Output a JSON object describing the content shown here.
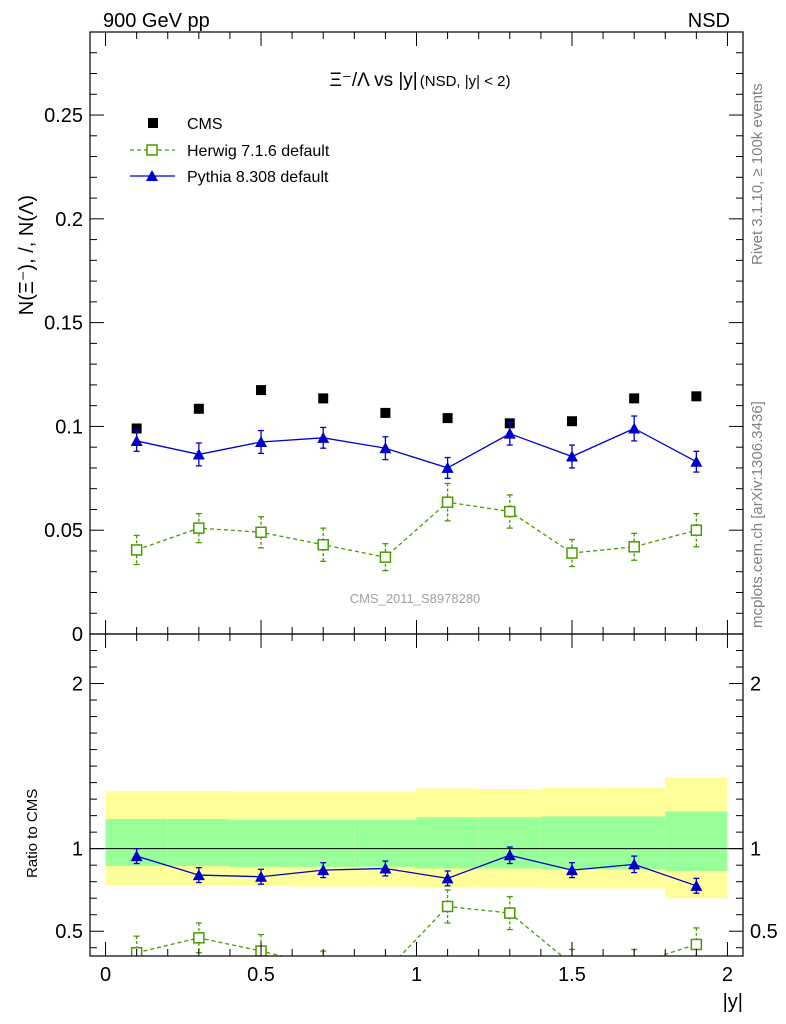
{
  "header": {
    "left": "900 GeV pp",
    "right": "NSD"
  },
  "side_text": {
    "upper": "Rivet 3.1.10, ≥ 100k events",
    "lower": "mcplots.cern.ch [arXiv:1306.3436]"
  },
  "chart_data": [
    {
      "type": "scatter",
      "panel": "main",
      "title": "Ξ⁻/Λ vs |y| (NSD, |y| < 2)",
      "title_main": "Ξ⁻/Λ vs |y|",
      "title_sub": "(NSD, |y| < 2)",
      "xlabel": "|y|",
      "ylabel": "N(Ξ⁻), /, N(Λ)",
      "xlim": [
        -0.05,
        2.05
      ],
      "ylim": [
        0,
        0.29
      ],
      "yticks": [
        0,
        0.05,
        0.1,
        0.15,
        0.2,
        0.25
      ],
      "ytick_labels": [
        "0",
        "0.05",
        "0.1",
        "0.15",
        "0.2",
        "0.25"
      ],
      "watermark": "CMS_2011_S8978280",
      "legend_position": "top-left",
      "series": [
        {
          "name": "CMS",
          "style": "data",
          "color": "#000000",
          "marker": "square-filled",
          "x": [
            0.1,
            0.3,
            0.5,
            0.7,
            0.9,
            1.1,
            1.3,
            1.5,
            1.7,
            1.9
          ],
          "y": [
            0.099,
            0.1085,
            0.1175,
            0.1135,
            0.1065,
            0.104,
            0.1015,
            0.1025,
            0.1135,
            0.1145
          ]
        },
        {
          "name": "Herwig 7.1.6 default",
          "style": "mc-dashed",
          "color": "#4a9a00",
          "marker": "square-open",
          "x": [
            0.1,
            0.3,
            0.5,
            0.7,
            0.9,
            1.1,
            1.3,
            1.5,
            1.7,
            1.9
          ],
          "y": [
            0.0405,
            0.051,
            0.049,
            0.043,
            0.037,
            0.0635,
            0.059,
            0.039,
            0.042,
            0.05
          ],
          "err": [
            0.007,
            0.007,
            0.0075,
            0.008,
            0.0065,
            0.009,
            0.008,
            0.0065,
            0.0065,
            0.008
          ]
        },
        {
          "name": "Pythia 8.308 default",
          "style": "mc-solid",
          "color": "#0000cc",
          "marker": "triangle-filled",
          "x": [
            0.1,
            0.3,
            0.5,
            0.7,
            0.9,
            1.1,
            1.3,
            1.5,
            1.7,
            1.9
          ],
          "y": [
            0.093,
            0.0865,
            0.0925,
            0.0945,
            0.0895,
            0.08,
            0.0965,
            0.0855,
            0.099,
            0.083
          ],
          "err": [
            0.005,
            0.0055,
            0.0055,
            0.005,
            0.0055,
            0.005,
            0.0055,
            0.0055,
            0.006,
            0.005
          ]
        }
      ]
    },
    {
      "type": "scatter",
      "panel": "ratio",
      "xlabel": "|y|",
      "ylabel": "Ratio to CMS",
      "xlim": [
        -0.05,
        2.05
      ],
      "ylim": [
        0.35,
        2.3
      ],
      "yticks": [
        0.5,
        1,
        2
      ],
      "ytick_labels": [
        "0.5",
        "1",
        "2"
      ],
      "xticks": [
        0,
        0.5,
        1,
        1.5,
        2
      ],
      "xtick_labels": [
        "0",
        "0.5",
        "1",
        "1.5",
        "2"
      ],
      "bands": {
        "bin_edges": [
          0.0,
          0.2,
          0.4,
          0.6,
          0.8,
          1.0,
          1.2,
          1.4,
          1.6,
          1.8,
          2.0
        ],
        "stat_low": [
          0.895,
          0.895,
          0.89,
          0.89,
          0.89,
          0.88,
          0.88,
          0.875,
          0.875,
          0.865
        ],
        "stat_high": [
          1.18,
          1.18,
          1.175,
          1.175,
          1.175,
          1.19,
          1.19,
          1.195,
          1.195,
          1.225
        ],
        "syst_low": [
          0.78,
          0.78,
          0.775,
          0.77,
          0.77,
          0.765,
          0.765,
          0.76,
          0.76,
          0.7
        ],
        "syst_high": [
          1.35,
          1.35,
          1.345,
          1.345,
          1.345,
          1.365,
          1.36,
          1.37,
          1.37,
          1.43
        ],
        "stat_color": "#99ff99",
        "syst_color": "#ffff99"
      },
      "series": [
        {
          "name": "Herwig 7.1.6 default",
          "color": "#4a9a00",
          "marker": "square-open",
          "x": [
            0.1,
            0.3,
            0.5,
            0.7,
            0.9,
            1.1,
            1.3,
            1.5,
            1.7,
            1.9
          ],
          "y": [
            0.37,
            0.46,
            0.38,
            0.29,
            0.255,
            0.65,
            0.61,
            0.3,
            0.3,
            0.42
          ],
          "err": [
            0.1,
            0.09,
            0.1,
            0.09,
            0.08,
            0.1,
            0.1,
            0.09,
            0.09,
            0.1
          ]
        },
        {
          "name": "Pythia 8.308 default",
          "color": "#0000cc",
          "marker": "triangle-filled",
          "x": [
            0.1,
            0.3,
            0.5,
            0.7,
            0.9,
            1.1,
            1.3,
            1.5,
            1.7,
            1.9
          ],
          "y": [
            0.955,
            0.84,
            0.83,
            0.87,
            0.88,
            0.82,
            0.96,
            0.87,
            0.905,
            0.775
          ],
          "err": [
            0.045,
            0.045,
            0.045,
            0.045,
            0.045,
            0.045,
            0.05,
            0.045,
            0.05,
            0.045
          ]
        }
      ]
    }
  ]
}
